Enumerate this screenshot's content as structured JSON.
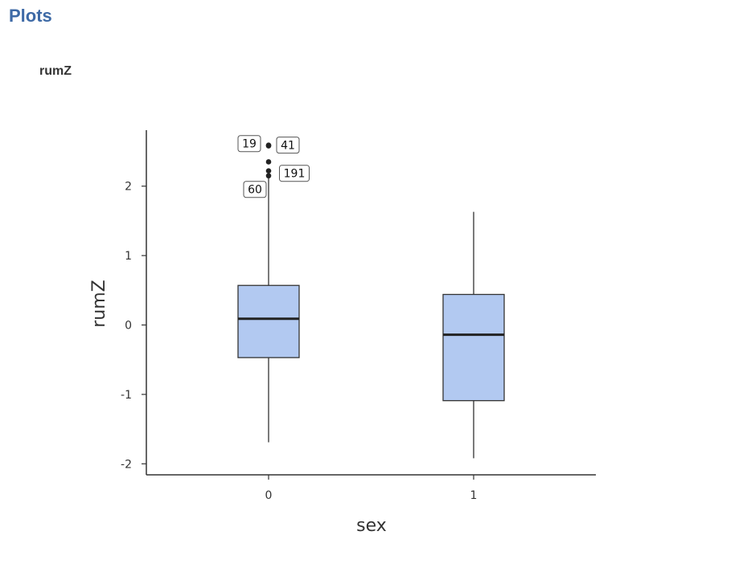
{
  "section": {
    "title": "Plots"
  },
  "plot": {
    "title": "rumZ"
  },
  "colors": {
    "box_fill": "#b2c9f1",
    "box_stroke": "#333333",
    "axis": "#333333",
    "section_heading": "#3e6aa6"
  },
  "chart_data": {
    "type": "box",
    "title": "rumZ",
    "xlabel": "sex",
    "ylabel": "rumZ",
    "categories": [
      "0",
      "1"
    ],
    "ylim": [
      -2.15,
      2.8
    ],
    "yticks": [
      -2,
      -1,
      0,
      1,
      2
    ],
    "grid": false,
    "legend": "none",
    "boxes": [
      {
        "category": "0",
        "whisker_low": -1.69,
        "q1": -0.47,
        "median": 0.09,
        "q3": 0.57,
        "whisker_high": 2.12,
        "outliers": [
          {
            "value": 2.59,
            "label": "19"
          },
          {
            "value": 2.58,
            "label": "41"
          },
          {
            "value": 2.35,
            "label": ""
          },
          {
            "value": 2.22,
            "label": "191"
          },
          {
            "value": 2.15,
            "label": "60"
          }
        ]
      },
      {
        "category": "1",
        "whisker_low": -1.92,
        "q1": -1.09,
        "median": -0.14,
        "q3": 0.44,
        "whisker_high": 1.63,
        "outliers": []
      }
    ]
  }
}
